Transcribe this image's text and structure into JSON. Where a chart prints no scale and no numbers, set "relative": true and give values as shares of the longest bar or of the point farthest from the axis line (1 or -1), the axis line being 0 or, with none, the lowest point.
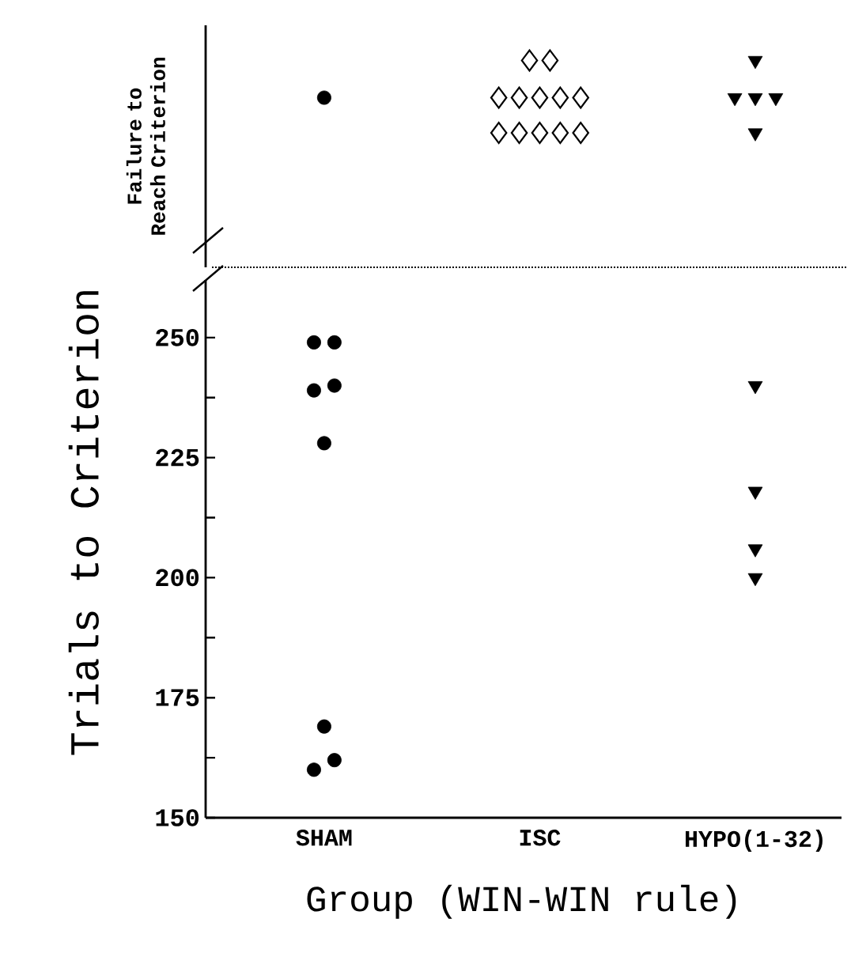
{
  "chart_data": [
    {
      "type": "scatter",
      "ylabel": "Failure to Reach Criterion",
      "categories": [
        "SHAM",
        "ISC",
        "HYPO(1-32)"
      ],
      "relative": true,
      "tick_labels": false,
      "series": [
        {
          "color": "#000000",
          "marker": "circle",
          "x": [
            "SHAM"
          ],
          "values": [
            0.82
          ]
        },
        {
          "color": "#000000",
          "marker": "diamond",
          "x": [
            "ISC",
            "ISC",
            "ISC",
            "ISC",
            "ISC",
            "ISC",
            "ISC",
            "ISC",
            "ISC",
            "ISC",
            "ISC",
            "ISC"
          ],
          "values": [
            1,
            1,
            0.82,
            0.82,
            0.82,
            0.82,
            0.82,
            0.65,
            0.65,
            0.65,
            0.65,
            0.65
          ]
        },
        {
          "color": "#000000",
          "marker": "triangle",
          "x": [
            "HYPO(1-32)",
            "HYPO(1-32)",
            "HYPO(1-32)",
            "HYPO(1-32)",
            "HYPO(1-32)"
          ],
          "values": [
            1,
            0.82,
            0.82,
            0.82,
            0.65
          ]
        }
      ]
    },
    {
      "type": "scatter",
      "ylabel": "Trials to Criterion",
      "xlabel": "Group (WIN-WIN rule)",
      "categories": [
        "SHAM",
        "ISC",
        "HYPO(1-32)"
      ],
      "ylim": [
        150,
        262
      ],
      "yticks": [
        150,
        {
          "value": 162.5,
          "label": null
        },
        175,
        {
          "value": 187.5,
          "label": null
        },
        200,
        {
          "value": 212.5,
          "label": null
        },
        225,
        {
          "value": 237.5,
          "label": null
        },
        250
      ],
      "series": [
        {
          "color": "#000000",
          "marker": "circle",
          "x": [
            "SHAM",
            "SHAM",
            "SHAM",
            "SHAM",
            "SHAM",
            "SHAM",
            "SHAM",
            "SHAM"
          ],
          "values": [
            249,
            249,
            239,
            240,
            228,
            169,
            162,
            160
          ]
        },
        {
          "color": "#000000",
          "marker": "triangle",
          "x": [
            "HYPO(1-32)",
            "HYPO(1-32)",
            "HYPO(1-32)",
            "HYPO(1-32)"
          ],
          "values": [
            240,
            218,
            206,
            200
          ]
        }
      ]
    }
  ]
}
